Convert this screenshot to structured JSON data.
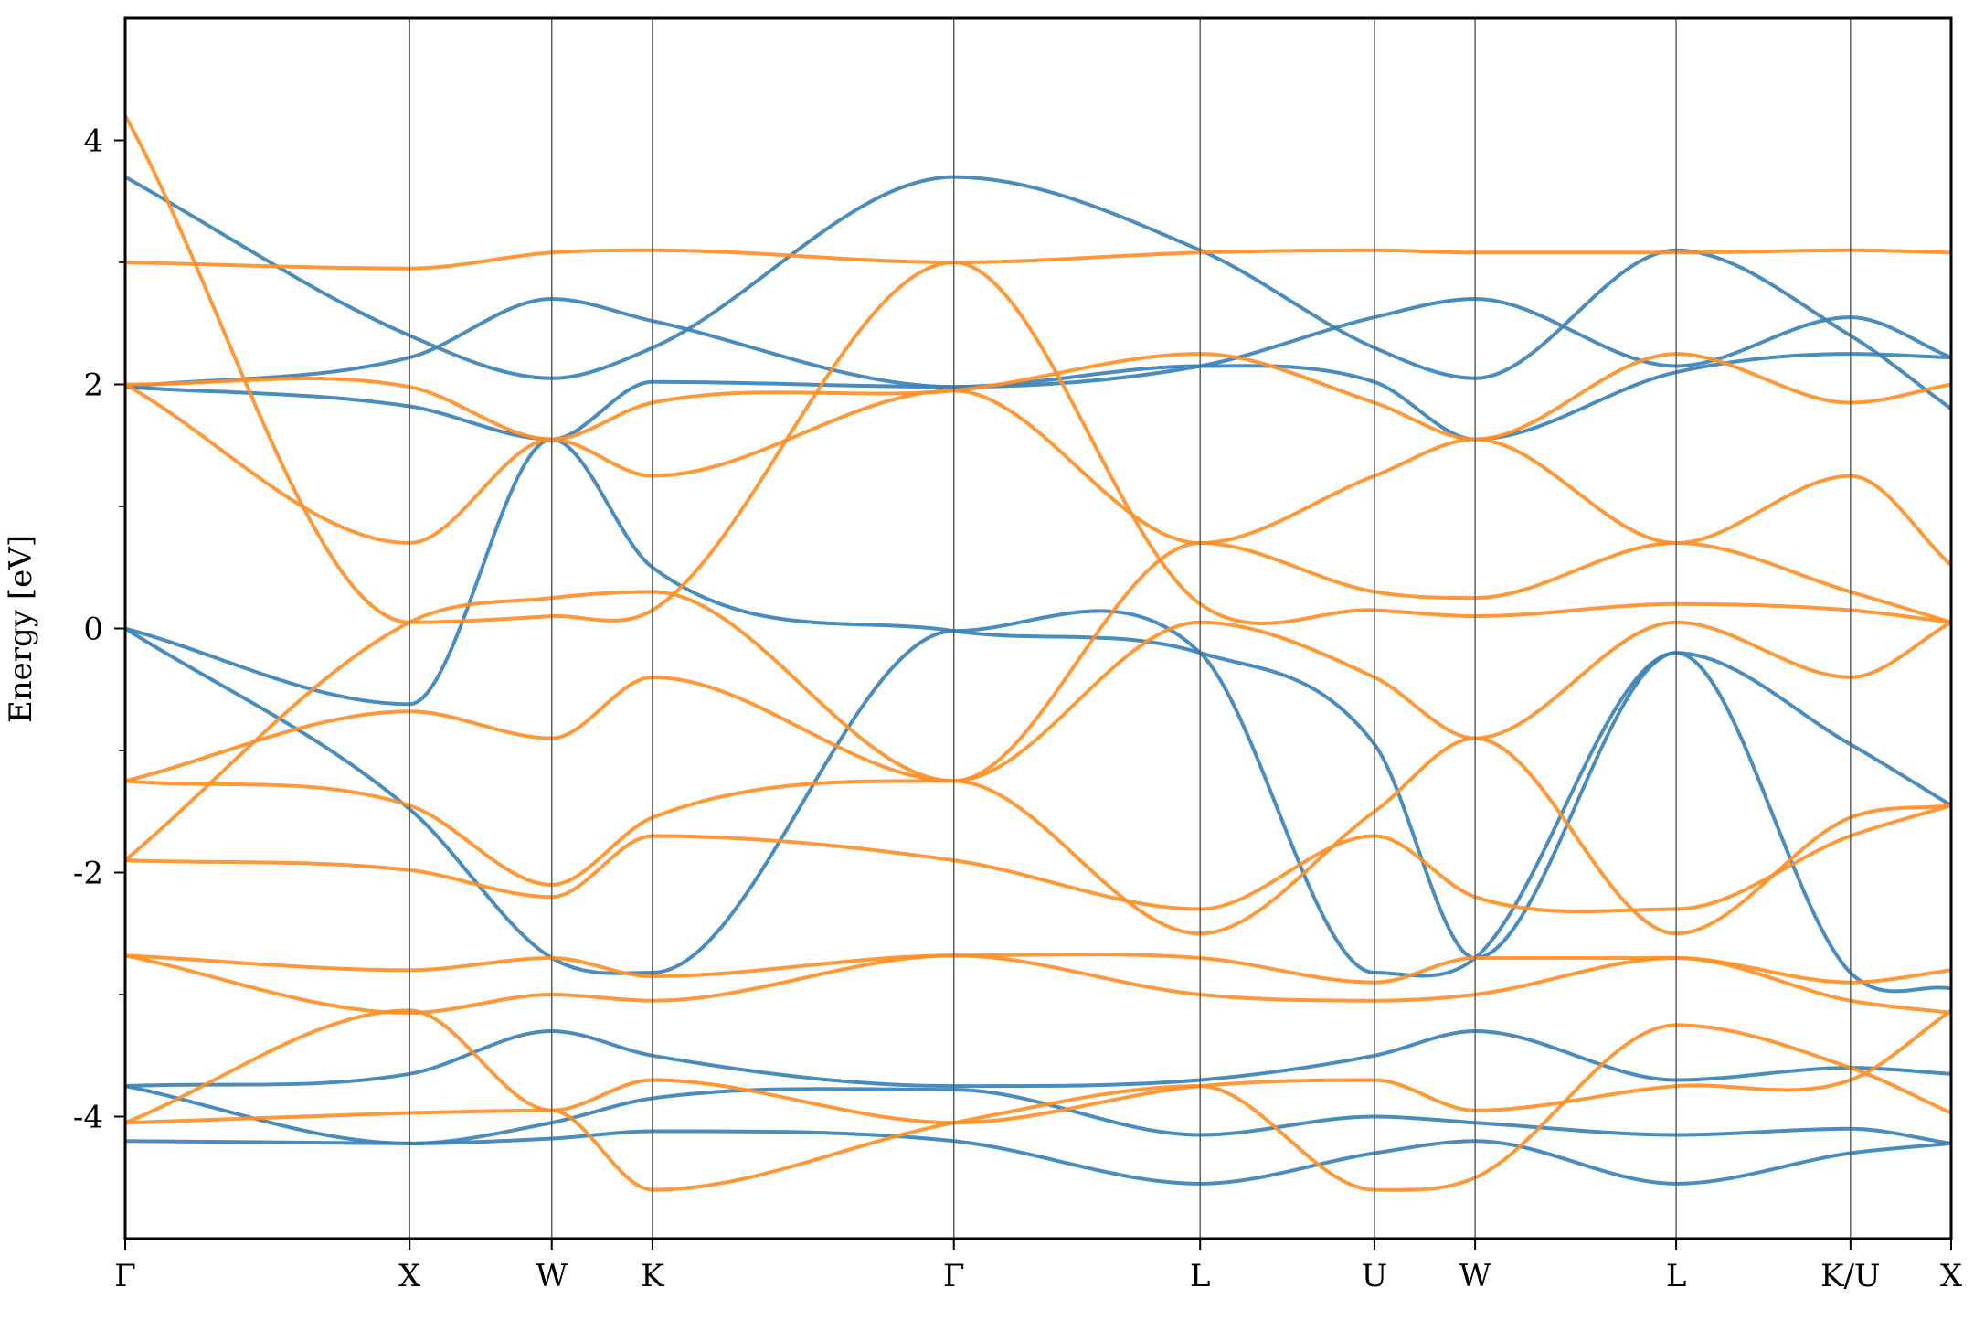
{
  "chart_data": {
    "type": "line",
    "title": "",
    "xlabel": "",
    "ylabel": "Energy [eV]",
    "ylim": [
      -5,
      5
    ],
    "grid": false,
    "legend": "none",
    "kpath": [
      {
        "label": "Γ",
        "x": 0.0
      },
      {
        "label": "X",
        "x": 1.0
      },
      {
        "label": "W",
        "x": 1.5
      },
      {
        "label": "K",
        "x": 1.854
      },
      {
        "label": "Γ",
        "x": 2.914
      },
      {
        "label": "L",
        "x": 3.78
      },
      {
        "label": "U",
        "x": 4.393
      },
      {
        "label": "W",
        "x": 4.747
      },
      {
        "label": "L",
        "x": 5.454
      },
      {
        "label": "K/U",
        "x": 6.067
      },
      {
        "label": "X",
        "x": 6.421
      }
    ],
    "yticks": [
      {
        "label": "4",
        "value": 4
      },
      {
        "label": "2",
        "value": 2
      },
      {
        "label": "0",
        "value": 0
      },
      {
        "label": "-2",
        "value": -2
      },
      {
        "label": "-4",
        "value": -4
      }
    ],
    "minor_yticks": [
      3,
      1,
      -1,
      -3
    ],
    "colors": {
      "blue": "#3b82b8",
      "orange": "#ff8f26",
      "kline": "#555555",
      "frame": "#000000"
    },
    "series": [
      {
        "color": "blue",
        "k": [
          0,
          1,
          1.5,
          1.854,
          2.914,
          3.78,
          4.393,
          4.747,
          5.454,
          6.067,
          6.421
        ],
        "e": [
          0.0,
          -0.62,
          1.55,
          0.5,
          -0.02,
          -0.2,
          -0.95,
          -2.7,
          -0.2,
          -0.95,
          -1.45
        ]
      },
      {
        "color": "blue",
        "k": [
          0,
          1,
          1.5,
          1.854,
          2.914,
          3.78,
          4.393,
          4.747,
          5.454,
          6.067,
          6.421
        ],
        "e": [
          0.0,
          -1.48,
          -2.7,
          -2.82,
          -0.02,
          -0.2,
          -2.82,
          -2.7,
          -0.2,
          -2.82,
          -2.95
        ]
      },
      {
        "color": "blue",
        "k": [
          0,
          1,
          1.5,
          1.854,
          2.914,
          3.78,
          4.393,
          4.747,
          5.454,
          6.067,
          6.421
        ],
        "e": [
          1.98,
          1.82,
          1.55,
          2.02,
          1.98,
          2.15,
          2.02,
          1.55,
          2.1,
          2.25,
          2.22
        ]
      },
      {
        "color": "blue",
        "k": [
          0,
          1,
          1.5,
          1.854,
          2.914,
          3.78,
          4.393,
          4.747,
          5.454,
          6.067,
          6.421
        ],
        "e": [
          1.98,
          2.22,
          2.7,
          2.52,
          1.98,
          2.15,
          2.55,
          2.7,
          2.15,
          2.55,
          2.22
        ]
      },
      {
        "color": "blue",
        "k": [
          0,
          1,
          1.5,
          1.854,
          2.914,
          3.78,
          4.393,
          4.747,
          5.454,
          6.067,
          6.421
        ],
        "e": [
          3.7,
          2.4,
          2.05,
          2.3,
          3.7,
          3.1,
          2.3,
          2.05,
          3.1,
          2.4,
          1.8
        ]
      },
      {
        "color": "blue",
        "k": [
          0,
          1,
          1.5,
          1.854,
          2.914,
          3.78,
          4.393,
          4.747,
          5.454,
          6.067,
          6.421
        ],
        "e": [
          -3.75,
          -3.65,
          -3.3,
          -3.5,
          -3.75,
          -3.7,
          -3.5,
          -3.3,
          -3.7,
          -3.6,
          -3.65
        ]
      },
      {
        "color": "blue",
        "k": [
          0,
          1,
          1.5,
          1.854,
          2.914,
          3.78,
          4.393,
          4.747,
          5.454,
          6.067,
          6.421
        ],
        "e": [
          -4.2,
          -4.22,
          -4.18,
          -4.12,
          -4.2,
          -4.55,
          -4.3,
          -4.2,
          -4.55,
          -4.3,
          -4.22
        ]
      },
      {
        "color": "blue",
        "k": [
          0,
          1,
          1.5,
          1.854,
          2.914,
          3.78,
          4.393,
          4.747,
          5.454,
          6.067,
          6.421
        ],
        "e": [
          -3.75,
          -4.22,
          -4.05,
          -3.85,
          -3.78,
          -4.15,
          -4.0,
          -4.05,
          -4.15,
          -4.1,
          -4.22
        ]
      },
      {
        "color": "orange",
        "k": [
          0,
          1,
          1.5,
          1.854,
          2.914,
          3.78,
          4.393,
          4.747,
          5.454,
          6.067,
          6.421
        ],
        "e": [
          -1.9,
          0.05,
          0.25,
          0.3,
          -1.25,
          0.7,
          0.3,
          0.25,
          0.7,
          0.3,
          0.05
        ]
      },
      {
        "color": "orange",
        "k": [
          0,
          1,
          1.5,
          1.854,
          2.914,
          3.78,
          4.393,
          4.747,
          5.454,
          6.067,
          6.421
        ],
        "e": [
          4.2,
          0.05,
          0.1,
          0.15,
          3.0,
          0.2,
          0.15,
          0.1,
          0.2,
          0.15,
          0.05
        ]
      },
      {
        "color": "orange",
        "k": [
          0,
          1,
          1.5,
          1.854,
          2.914,
          3.78,
          4.393,
          4.747,
          5.454,
          6.067,
          6.421
        ],
        "e": [
          -1.25,
          -0.68,
          -0.9,
          -0.4,
          -1.25,
          0.05,
          -0.4,
          -0.9,
          0.05,
          -0.4,
          0.05
        ]
      },
      {
        "color": "orange",
        "k": [
          0,
          1,
          1.5,
          1.854,
          2.914,
          3.78,
          4.393,
          4.747,
          5.454,
          6.067,
          6.421
        ],
        "e": [
          2.0,
          0.7,
          1.55,
          1.25,
          1.95,
          0.7,
          1.25,
          1.55,
          0.7,
          1.25,
          0.52
        ]
      },
      {
        "color": "orange",
        "k": [
          0,
          1,
          1.5,
          1.854,
          2.914,
          3.78,
          4.393,
          4.747,
          5.454,
          6.067,
          6.421
        ],
        "e": [
          2.0,
          1.98,
          1.55,
          1.85,
          1.95,
          2.25,
          1.85,
          1.55,
          2.25,
          1.85,
          2.0
        ]
      },
      {
        "color": "orange",
        "k": [
          0,
          1,
          1.5,
          1.854,
          2.914,
          3.78,
          4.393,
          4.747,
          5.454,
          6.067,
          6.421
        ],
        "e": [
          3.0,
          2.95,
          3.08,
          3.1,
          3.0,
          3.08,
          3.1,
          3.08,
          3.08,
          3.1,
          3.08
        ]
      },
      {
        "color": "orange",
        "k": [
          0,
          1,
          1.5,
          1.854,
          2.914,
          3.78,
          4.393,
          4.747,
          5.454,
          6.067,
          6.421
        ],
        "e": [
          -1.25,
          -1.45,
          -2.1,
          -1.55,
          -1.25,
          -2.5,
          -1.5,
          -0.9,
          -2.5,
          -1.55,
          -1.45
        ]
      },
      {
        "color": "orange",
        "k": [
          0,
          1,
          1.5,
          1.854,
          2.914,
          3.78,
          4.393,
          4.747,
          5.454,
          6.067,
          6.421
        ],
        "e": [
          -1.9,
          -1.98,
          -2.2,
          -1.7,
          -1.9,
          -2.3,
          -1.7,
          -2.2,
          -2.3,
          -1.7,
          -1.45
        ]
      },
      {
        "color": "orange",
        "k": [
          0,
          1,
          1.5,
          1.854,
          2.914,
          3.78,
          4.393,
          4.747,
          5.454,
          6.067,
          6.421
        ],
        "e": [
          -2.68,
          -2.8,
          -2.7,
          -2.85,
          -2.68,
          -2.7,
          -2.9,
          -2.7,
          -2.7,
          -2.9,
          -2.8
        ]
      },
      {
        "color": "orange",
        "k": [
          0,
          1,
          1.5,
          1.854,
          2.914,
          3.78,
          4.393,
          4.747,
          5.454,
          6.067,
          6.421
        ],
        "e": [
          -2.68,
          -3.15,
          -3.0,
          -3.05,
          -2.68,
          -3.0,
          -3.05,
          -3.0,
          -2.7,
          -3.05,
          -3.15
        ]
      },
      {
        "color": "orange",
        "k": [
          0,
          1,
          1.5,
          1.854,
          2.914,
          3.78,
          4.393,
          4.747,
          5.454,
          6.067,
          6.421
        ],
        "e": [
          -4.05,
          -3.13,
          -3.95,
          -3.7,
          -4.05,
          -3.75,
          -3.7,
          -3.95,
          -3.75,
          -3.7,
          -3.13
        ]
      },
      {
        "color": "orange",
        "k": [
          0,
          1,
          1.5,
          1.854,
          2.914,
          3.78,
          4.393,
          4.747,
          5.454,
          6.067,
          6.421
        ],
        "e": [
          -4.05,
          -3.97,
          -3.95,
          -4.6,
          -4.05,
          -3.75,
          -4.6,
          -4.5,
          -3.25,
          -3.6,
          -3.97
        ]
      }
    ]
  }
}
